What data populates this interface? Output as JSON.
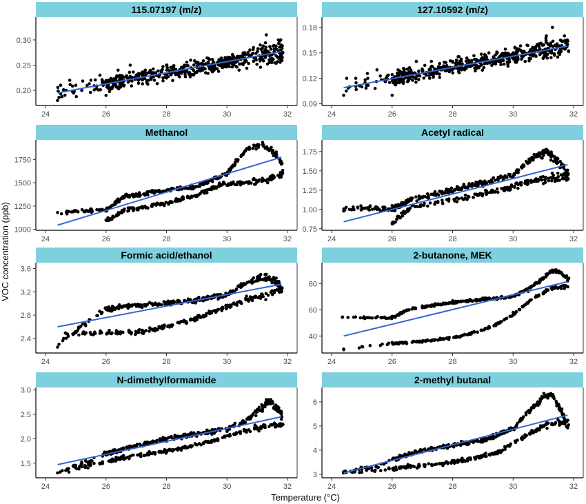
{
  "figure": {
    "xlabel": "Temperature (°C)",
    "ylabel": "VOC concentration (ppb)"
  },
  "style": {
    "strip_fill": "#7fd0de",
    "point_color": "#000000",
    "fit_color": "#3366d6",
    "axis_color": "#000000"
  },
  "chart_data": [
    {
      "type": "scatter",
      "title": "115.07197 (m/z)",
      "xlim": [
        24,
        32
      ],
      "ylim": [
        0.17,
        0.345
      ],
      "xticks": [
        "24",
        "26",
        "28",
        "30",
        "32"
      ],
      "yticks": [
        "0.20",
        "0.25",
        "0.30"
      ],
      "fit": {
        "x": [
          24.4,
          31.8
        ],
        "y": [
          0.195,
          0.277
        ]
      },
      "pattern": {
        "kind": "noisy_linear",
        "y0": 0.195,
        "y1": 0.277,
        "noise": 0.022
      },
      "points_x": [
        24.4,
        24.5,
        24.6,
        24.8,
        25.0,
        25.2,
        25.5,
        25.8,
        26.0,
        26.2,
        26.4,
        26.6,
        26.8,
        27.0,
        27.3,
        27.6,
        28.0,
        28.4,
        28.8,
        29.2,
        29.6,
        30.0,
        30.4,
        30.8,
        31.1,
        31.3,
        31.5,
        31.7,
        31.8
      ],
      "points_y": [
        0.18,
        0.21,
        0.2,
        0.22,
        0.21,
        0.2,
        0.22,
        0.23,
        0.19,
        0.22,
        0.24,
        0.21,
        0.25,
        0.23,
        0.24,
        0.22,
        0.25,
        0.23,
        0.26,
        0.24,
        0.25,
        0.26,
        0.24,
        0.27,
        0.29,
        0.31,
        0.26,
        0.3,
        0.27
      ]
    },
    {
      "type": "scatter",
      "title": "127.10592 (m/z)",
      "xlim": [
        24,
        32
      ],
      "ylim": [
        0.088,
        0.192
      ],
      "xticks": [
        "24",
        "26",
        "28",
        "30",
        "32"
      ],
      "yticks": [
        "0.09",
        "0.12",
        "0.15",
        "0.18"
      ],
      "fit": {
        "x": [
          24.4,
          31.8
        ],
        "y": [
          0.109,
          0.158
        ]
      },
      "pattern": {
        "kind": "noisy_linear",
        "y0": 0.109,
        "y1": 0.158,
        "noise": 0.013
      },
      "points_x": [
        24.4,
        24.5,
        24.6,
        24.8,
        25.0,
        25.2,
        25.5,
        25.8,
        26.0,
        26.2,
        26.4,
        26.6,
        26.8,
        27.0,
        27.3,
        27.6,
        28.0,
        28.4,
        28.8,
        29.2,
        29.6,
        30.0,
        30.4,
        30.8,
        31.1,
        31.3,
        31.5,
        31.7,
        31.8
      ],
      "points_y": [
        0.1,
        0.12,
        0.11,
        0.12,
        0.11,
        0.12,
        0.13,
        0.12,
        0.1,
        0.12,
        0.13,
        0.12,
        0.14,
        0.13,
        0.14,
        0.13,
        0.14,
        0.13,
        0.14,
        0.15,
        0.14,
        0.15,
        0.14,
        0.16,
        0.17,
        0.18,
        0.15,
        0.17,
        0.16
      ]
    },
    {
      "type": "scatter",
      "title": "Methanol",
      "xlim": [
        24,
        32
      ],
      "ylim": [
        990,
        1960
      ],
      "xticks": [
        "24",
        "26",
        "28",
        "30",
        "32"
      ],
      "yticks": [
        "1000",
        "1250",
        "1500",
        "1750"
      ],
      "fit": {
        "x": [
          24.4,
          31.8
        ],
        "y": [
          1045,
          1775
        ]
      },
      "pattern": {
        "kind": "hysteresis",
        "upper": [
          [
            24.4,
            1180
          ],
          [
            26.0,
            1210
          ],
          [
            26.6,
            1350
          ],
          [
            28.0,
            1420
          ],
          [
            29.0,
            1460
          ],
          [
            30.0,
            1600
          ],
          [
            30.6,
            1840
          ],
          [
            31.1,
            1910
          ],
          [
            31.5,
            1850
          ],
          [
            31.8,
            1720
          ]
        ],
        "lower": [
          [
            26.0,
            1090
          ],
          [
            26.6,
            1200
          ],
          [
            28.0,
            1280
          ],
          [
            29.0,
            1370
          ],
          [
            29.8,
            1480
          ],
          [
            30.5,
            1500
          ],
          [
            31.2,
            1520
          ],
          [
            31.8,
            1600
          ]
        ],
        "noise": 30
      },
      "points_x": [
        24.4,
        25.0,
        25.5,
        26.0,
        26.0,
        26.5,
        27.0,
        27.5,
        28.0,
        28.5,
        29.0,
        29.5,
        30.0,
        30.3,
        30.6,
        30.9,
        31.2,
        31.5,
        31.8,
        26.6,
        27.5,
        28.5,
        29.5,
        30.5,
        31.5
      ],
      "points_y": [
        1180,
        1200,
        1220,
        1210,
        1100,
        1330,
        1380,
        1400,
        1420,
        1440,
        1460,
        1520,
        1600,
        1750,
        1840,
        1900,
        1900,
        1820,
        1700,
        1210,
        1250,
        1320,
        1430,
        1500,
        1560
      ]
    },
    {
      "type": "scatter",
      "title": "Acetyl radical",
      "xlim": [
        24,
        32
      ],
      "ylim": [
        0.73,
        1.9
      ],
      "xticks": [
        "24",
        "26",
        "28",
        "30",
        "32"
      ],
      "yticks": [
        "0.75",
        "1.00",
        "1.25",
        "1.50",
        "1.75"
      ],
      "fit": {
        "x": [
          24.4,
          31.8
        ],
        "y": [
          0.84,
          1.58
        ]
      },
      "pattern": {
        "kind": "hysteresis",
        "upper": [
          [
            24.4,
            1.0
          ],
          [
            25.5,
            1.02
          ],
          [
            26.0,
            1.0
          ],
          [
            26.6,
            1.12
          ],
          [
            28.0,
            1.25
          ],
          [
            29.0,
            1.35
          ],
          [
            30.0,
            1.45
          ],
          [
            30.6,
            1.65
          ],
          [
            31.1,
            1.75
          ],
          [
            31.5,
            1.6
          ],
          [
            31.8,
            1.45
          ]
        ],
        "lower": [
          [
            26.0,
            0.82
          ],
          [
            26.6,
            1.02
          ],
          [
            28.0,
            1.12
          ],
          [
            29.0,
            1.2
          ],
          [
            30.0,
            1.3
          ],
          [
            30.8,
            1.38
          ],
          [
            31.8,
            1.42
          ]
        ],
        "noise": 0.05
      },
      "points_x": [
        24.4,
        25.0,
        25.5,
        26.0,
        26.0,
        26.5,
        27.0,
        27.5,
        28.0,
        28.5,
        29.0,
        29.5,
        30.0,
        30.5,
        31.0,
        31.3,
        31.6,
        31.8
      ],
      "points_y": [
        0.98,
        1.02,
        1.0,
        1.05,
        0.82,
        1.1,
        1.15,
        1.2,
        1.22,
        1.28,
        1.3,
        1.38,
        1.42,
        1.6,
        1.72,
        1.7,
        1.55,
        1.45
      ]
    },
    {
      "type": "scatter",
      "title": "Formic acid/ethanol",
      "xlim": [
        24,
        32
      ],
      "ylim": [
        2.15,
        3.7
      ],
      "xticks": [
        "24",
        "26",
        "28",
        "30",
        "32"
      ],
      "yticks": [
        "2.4",
        "2.8",
        "3.2",
        "3.6"
      ],
      "fit": {
        "x": [
          24.4,
          31.8
        ],
        "y": [
          2.6,
          3.33
        ]
      },
      "pattern": {
        "kind": "hysteresis",
        "upper": [
          [
            24.4,
            2.3
          ],
          [
            26.0,
            2.9
          ],
          [
            26.6,
            2.95
          ],
          [
            28.0,
            3.0
          ],
          [
            29.0,
            3.05
          ],
          [
            30.0,
            3.15
          ],
          [
            30.6,
            3.35
          ],
          [
            31.1,
            3.45
          ],
          [
            31.5,
            3.4
          ],
          [
            31.8,
            3.3
          ]
        ],
        "lower": [
          [
            24.6,
            2.5
          ],
          [
            26.0,
            2.5
          ],
          [
            27.0,
            2.5
          ],
          [
            28.0,
            2.6
          ],
          [
            29.0,
            2.75
          ],
          [
            30.0,
            2.95
          ],
          [
            30.8,
            3.1
          ],
          [
            31.8,
            3.2
          ]
        ],
        "noise": 0.06
      },
      "points_x": [
        24.4,
        24.6,
        25.0,
        26.0,
        26.5,
        27.0,
        27.5,
        28.0,
        28.5,
        29.0,
        29.5,
        30.0,
        30.5,
        31.0,
        31.3,
        31.6,
        31.8
      ],
      "points_y": [
        2.25,
        2.4,
        2.5,
        2.9,
        2.95,
        2.98,
        3.0,
        3.02,
        3.0,
        3.05,
        3.1,
        3.15,
        3.3,
        3.45,
        3.5,
        3.35,
        3.25
      ]
    },
    {
      "type": "scatter",
      "title": "2-butanone, MEK",
      "xlim": [
        24,
        32
      ],
      "ylim": [
        27,
        96
      ],
      "xticks": [
        "24",
        "26",
        "28",
        "30",
        "32"
      ],
      "yticks": [
        "40",
        "60",
        "80"
      ],
      "fit": {
        "x": [
          24.4,
          31.8
        ],
        "y": [
          40,
          81.5
        ]
      },
      "pattern": {
        "kind": "hysteresis",
        "upper": [
          [
            26.0,
            54
          ],
          [
            26.5,
            60
          ],
          [
            27.5,
            64
          ],
          [
            28.5,
            67
          ],
          [
            29.5,
            69
          ],
          [
            30.0,
            70
          ],
          [
            30.5,
            76
          ],
          [
            31.0,
            84
          ],
          [
            31.3,
            90
          ],
          [
            31.6,
            88
          ],
          [
            31.8,
            84
          ]
        ],
        "lower": [
          [
            24.4,
            30
          ],
          [
            25.5,
            33
          ],
          [
            26.5,
            35
          ],
          [
            27.5,
            37
          ],
          [
            28.5,
            41
          ],
          [
            29.3,
            47
          ],
          [
            30.0,
            56
          ],
          [
            30.6,
            68
          ],
          [
            31.2,
            76
          ],
          [
            31.8,
            78
          ]
        ],
        "noise": 1.2
      },
      "points_x": [
        24.4,
        25.0,
        26.0,
        26.0,
        27.0,
        28.0,
        29.0,
        29.5,
        30.0,
        30.5,
        31.0,
        31.3,
        31.6,
        31.8
      ],
      "points_y": [
        30,
        32,
        35,
        55,
        63,
        67,
        69,
        50,
        58,
        74,
        84,
        90,
        88,
        82
      ]
    },
    {
      "type": "scatter",
      "title": "N-dimethylformamide",
      "xlim": [
        24,
        32
      ],
      "ylim": [
        1.2,
        3.05
      ],
      "xticks": [
        "24",
        "26",
        "28",
        "30",
        "32"
      ],
      "yticks": [
        "1.5",
        "2.0",
        "2.5",
        "3.0"
      ],
      "fit": {
        "x": [
          24.4,
          31.8
        ],
        "y": [
          1.47,
          2.45
        ]
      },
      "pattern": {
        "kind": "hysteresis",
        "upper": [
          [
            24.4,
            1.3
          ],
          [
            25.5,
            1.55
          ],
          [
            26.0,
            1.7
          ],
          [
            27.0,
            1.85
          ],
          [
            28.0,
            2.0
          ],
          [
            29.0,
            2.1
          ],
          [
            30.0,
            2.2
          ],
          [
            30.6,
            2.35
          ],
          [
            31.1,
            2.6
          ],
          [
            31.4,
            2.8
          ],
          [
            31.8,
            2.5
          ]
        ],
        "lower": [
          [
            24.4,
            1.3
          ],
          [
            25.5,
            1.45
          ],
          [
            26.5,
            1.6
          ],
          [
            27.5,
            1.7
          ],
          [
            28.5,
            1.8
          ],
          [
            29.5,
            1.95
          ],
          [
            30.5,
            2.15
          ],
          [
            31.2,
            2.25
          ],
          [
            31.8,
            2.3
          ]
        ],
        "noise": 0.06
      },
      "points_x": [
        24.4,
        25.0,
        25.5,
        26.0,
        26.5,
        27.0,
        27.5,
        28.0,
        28.5,
        29.0,
        29.5,
        30.0,
        30.5,
        31.0,
        31.3,
        31.6,
        31.8
      ],
      "points_y": [
        1.3,
        1.45,
        1.55,
        1.7,
        1.78,
        1.85,
        1.9,
        1.95,
        2.0,
        2.05,
        2.1,
        2.15,
        2.3,
        2.55,
        2.8,
        2.6,
        2.4
      ]
    },
    {
      "type": "scatter",
      "title": "2-methyl butanal",
      "xlim": [
        24,
        32
      ],
      "ylim": [
        2.85,
        6.6
      ],
      "xticks": [
        "24",
        "26",
        "28",
        "30",
        "32"
      ],
      "yticks": [
        "3",
        "4",
        "5",
        "6"
      ],
      "fit": {
        "x": [
          24.4,
          31.8
        ],
        "y": [
          3.05,
          5.45
        ]
      },
      "pattern": {
        "kind": "hysteresis",
        "upper": [
          [
            24.4,
            3.1
          ],
          [
            25.5,
            3.3
          ],
          [
            26.0,
            3.6
          ],
          [
            27.0,
            4.0
          ],
          [
            28.0,
            4.2
          ],
          [
            29.0,
            4.4
          ],
          [
            30.0,
            4.9
          ],
          [
            30.5,
            5.6
          ],
          [
            31.0,
            6.2
          ],
          [
            31.3,
            6.3
          ],
          [
            31.6,
            5.6
          ],
          [
            31.8,
            5.0
          ]
        ],
        "lower": [
          [
            24.4,
            3.1
          ],
          [
            25.5,
            3.15
          ],
          [
            26.5,
            3.3
          ],
          [
            27.5,
            3.4
          ],
          [
            28.5,
            3.6
          ],
          [
            29.5,
            3.9
          ],
          [
            30.3,
            4.5
          ],
          [
            31.0,
            5.0
          ],
          [
            31.8,
            5.2
          ]
        ],
        "noise": 0.12
      },
      "points_x": [
        24.4,
        25.0,
        25.5,
        26.0,
        26.5,
        27.0,
        27.5,
        28.0,
        28.5,
        29.0,
        29.5,
        30.0,
        30.5,
        31.0,
        31.3,
        31.6,
        31.8
      ],
      "points_y": [
        3.1,
        3.2,
        3.3,
        3.6,
        3.8,
        4.0,
        4.1,
        4.2,
        4.3,
        4.4,
        4.6,
        4.9,
        5.6,
        6.2,
        6.3,
        5.6,
        5.0
      ]
    }
  ]
}
